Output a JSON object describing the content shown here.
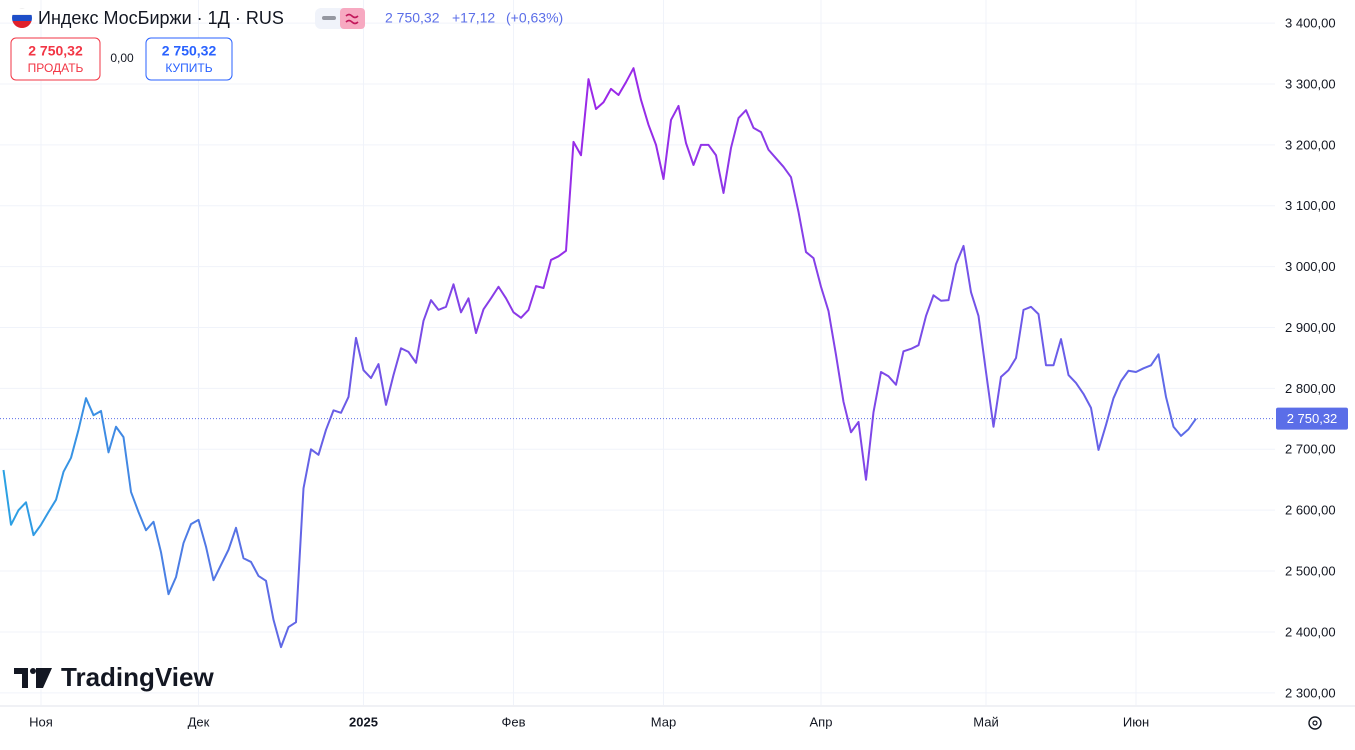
{
  "chart_data": {
    "type": "line",
    "title": "Индекс МосБиржи · 1Д · RUS",
    "quote": {
      "last": "2 750,32",
      "change": "+17,12",
      "change_pct": "(+0,63%)"
    },
    "sell": {
      "price": "2 750,32",
      "label": "ПРОДАТЬ"
    },
    "spread": "0,00",
    "buy": {
      "price": "2 750,32",
      "label": "КУПИТЬ"
    },
    "watermark": "TradingView",
    "categories": [
      null,
      null,
      null,
      null,
      null,
      "Ноя",
      null,
      null,
      null,
      null,
      null,
      null,
      null,
      null,
      null,
      null,
      null,
      null,
      null,
      null,
      null,
      null,
      null,
      null,
      null,
      null,
      "Дек",
      null,
      null,
      null,
      null,
      null,
      null,
      null,
      null,
      null,
      null,
      null,
      null,
      null,
      null,
      null,
      null,
      null,
      null,
      null,
      null,
      null,
      "2025",
      null,
      null,
      null,
      null,
      null,
      null,
      null,
      null,
      null,
      null,
      null,
      null,
      null,
      null,
      null,
      null,
      null,
      null,
      null,
      "Фев",
      null,
      null,
      null,
      null,
      null,
      null,
      null,
      null,
      null,
      null,
      null,
      null,
      null,
      null,
      null,
      null,
      null,
      null,
      null,
      "Мар",
      null,
      null,
      null,
      null,
      null,
      null,
      null,
      null,
      null,
      null,
      null,
      null,
      null,
      null,
      null,
      null,
      null,
      null,
      null,
      null,
      "Апр",
      null,
      null,
      null,
      null,
      null,
      null,
      null,
      null,
      null,
      null,
      null,
      null,
      null,
      null,
      null,
      null,
      null,
      null,
      null,
      null,
      null,
      "Май",
      null,
      null,
      null,
      null,
      null,
      null,
      null,
      null,
      null,
      null,
      null,
      null,
      null,
      null,
      null,
      null,
      null,
      null,
      null,
      "Июн",
      null,
      null,
      null,
      null,
      null,
      null,
      null,
      null
    ],
    "series": [
      {
        "colors": [
          "#2aa2e3",
          "#9c27e8",
          "#5b6ee8"
        ],
        "values": [
          2666,
          2576,
          2600,
          2613,
          2559,
          2576,
          2597,
          2617,
          2663,
          2686,
          2732,
          2784,
          2756,
          2763,
          2695,
          2737,
          2720,
          2630,
          2597,
          2567,
          2581,
          2531,
          2462,
          2490,
          2546,
          2577,
          2584,
          2540,
          2485,
          2510,
          2535,
          2571,
          2521,
          2515,
          2492,
          2484,
          2420,
          2375,
          2408,
          2416,
          2636,
          2700,
          2691,
          2732,
          2764,
          2760,
          2786,
          2883,
          2830,
          2817,
          2840,
          2773,
          2822,
          2866,
          2860,
          2842,
          2911,
          2945,
          2929,
          2934,
          2971,
          2925,
          2948,
          2891,
          2930,
          2948,
          2967,
          2948,
          2925,
          2916,
          2929,
          2968,
          2965,
          3011,
          3017,
          3026,
          3205,
          3183,
          3308,
          3259,
          3270,
          3292,
          3282,
          3303,
          3326,
          3274,
          3233,
          3200,
          3144,
          3241,
          3264,
          3203,
          3167,
          3200,
          3200,
          3183,
          3121,
          3195,
          3244,
          3257,
          3228,
          3221,
          3192,
          3178,
          3164,
          3147,
          3090,
          3024,
          3014,
          2967,
          2927,
          2855,
          2778,
          2728,
          2745,
          2650,
          2761,
          2827,
          2820,
          2806,
          2861,
          2865,
          2871,
          2919,
          2953,
          2944,
          2945,
          3004,
          3034,
          2958,
          2919,
          2827,
          2737,
          2819,
          2830,
          2850,
          2929,
          2934,
          2922,
          2838,
          2838,
          2881,
          2822,
          2809,
          2791,
          2768,
          2699,
          2740,
          2784,
          2812,
          2829,
          2827,
          2833,
          2838,
          2856,
          2786,
          2737,
          2722,
          2733,
          2750.32
        ]
      }
    ],
    "price_line": {
      "value": 2750.32,
      "label": "2 750,32",
      "color": "#5b6ee8"
    },
    "ylim": [
      2280,
      3438
    ],
    "yticks": [
      {
        "value": 2300,
        "label": "2 300,00"
      },
      {
        "value": 2400,
        "label": "2 400,00"
      },
      {
        "value": 2500,
        "label": "2 500,00"
      },
      {
        "value": 2600,
        "label": "2 600,00"
      },
      {
        "value": 2700,
        "label": "2 700,00"
      },
      {
        "value": 2800,
        "label": "2 800,00"
      },
      {
        "value": 2900,
        "label": "2 900,00"
      },
      {
        "value": 3000,
        "label": "3 000,00"
      },
      {
        "value": 3100,
        "label": "3 100,00"
      },
      {
        "value": 3200,
        "label": "3 200,00"
      },
      {
        "value": 3300,
        "label": "3 300,00"
      },
      {
        "value": 3400,
        "label": "3 400,00"
      }
    ],
    "grid": true
  }
}
